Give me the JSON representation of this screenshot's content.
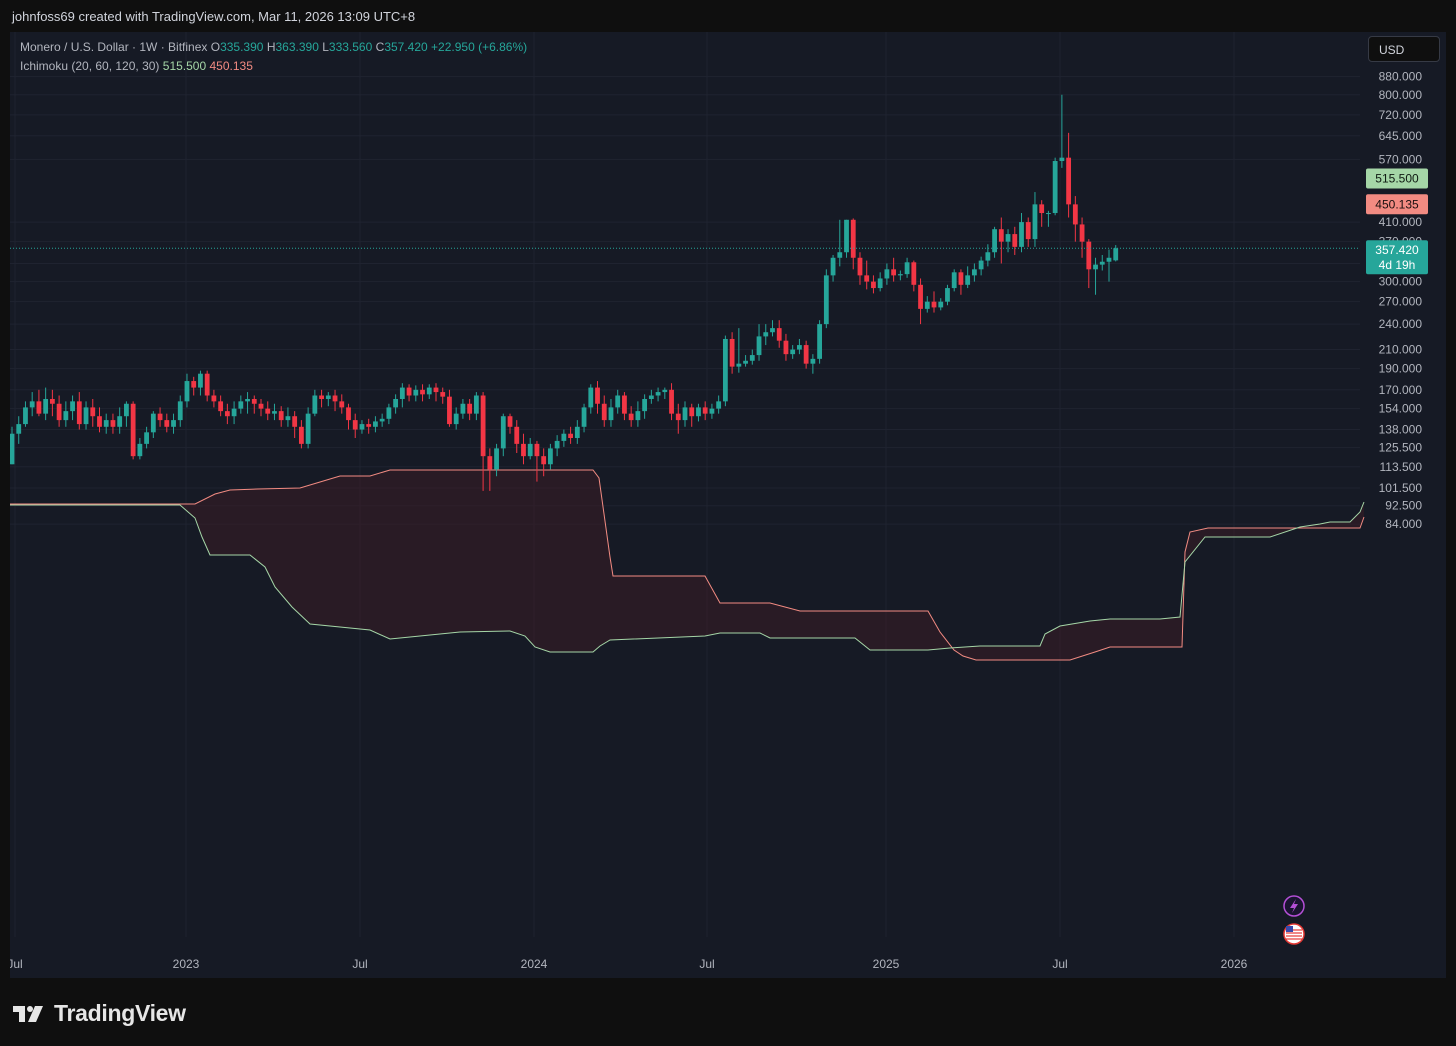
{
  "header": {
    "attribution": "johnfoss69 created with TradingView.com, Mar 11, 2026 13:09 UTC+8"
  },
  "legend": {
    "symbol": "Monero / U.S. Dollar · 1W · Bitfinex",
    "o_label": "O",
    "o_value": "335.390",
    "h_label": "H",
    "h_value": "363.390",
    "l_label": "L",
    "l_value": "333.560",
    "c_label": "C",
    "c_value": "357.420",
    "change": "+22.950 (+6.86%)",
    "indicator": "Ichimoku (20, 60, 120, 30)",
    "ind_value1": "515.500",
    "ind_value2": "450.135"
  },
  "currency_button": "USD",
  "footer": {
    "brand": "TradingView"
  },
  "colors": {
    "up": "#26a69a",
    "down": "#f23645",
    "tenkan": "#a5d6a7",
    "kijun": "#f28b82",
    "background": "#161a25",
    "grid": "#1f2330"
  },
  "icons": [
    "lightning-icon",
    "us-flag-icon"
  ],
  "chart_data": {
    "type": "candlestick",
    "title": "Monero / U.S. Dollar · 1W · Bitfinex",
    "y_scale": "log",
    "y_ticks": [
      "880.000",
      "800.000",
      "720.000",
      "645.000",
      "570.000",
      "410.000",
      "370.000",
      "330.000",
      "300.000",
      "270.000",
      "240.000",
      "210.000",
      "190.000",
      "170.000",
      "154.000",
      "138.000",
      "125.500",
      "113.500",
      "101.500",
      "92.500",
      "84.000"
    ],
    "x_ticks": [
      "Jul",
      "2023",
      "Jul",
      "2024",
      "Jul",
      "2025",
      "Jul",
      "2026"
    ],
    "price_tags": [
      {
        "value": "515.500",
        "kind": "tenkan"
      },
      {
        "value": "450.135",
        "kind": "kijun"
      },
      {
        "value": "357.420",
        "countdown": "4d 19h",
        "kind": "last"
      }
    ],
    "last_price": 357.42,
    "candles": [
      [
        115,
        135,
        115,
        140
      ],
      [
        135,
        142,
        128,
        148
      ],
      [
        142,
        155,
        140,
        160
      ],
      [
        155,
        160,
        148,
        168
      ],
      [
        160,
        150,
        148,
        170
      ],
      [
        150,
        162,
        145,
        172
      ],
      [
        162,
        158,
        148,
        170
      ],
      [
        158,
        145,
        140,
        165
      ],
      [
        145,
        152,
        140,
        160
      ],
      [
        152,
        160,
        145,
        165
      ],
      [
        160,
        142,
        138,
        168
      ],
      [
        142,
        155,
        138,
        160
      ],
      [
        155,
        148,
        140,
        162
      ],
      [
        148,
        140,
        136,
        155
      ],
      [
        140,
        145,
        135,
        150
      ],
      [
        145,
        140,
        135,
        150
      ],
      [
        140,
        148,
        135,
        155
      ],
      [
        148,
        158,
        140,
        160
      ],
      [
        158,
        120,
        118,
        160
      ],
      [
        120,
        128,
        118,
        132
      ],
      [
        128,
        136,
        125,
        140
      ],
      [
        136,
        150,
        132,
        152
      ],
      [
        150,
        145,
        140,
        155
      ],
      [
        145,
        140,
        136,
        150
      ],
      [
        140,
        145,
        135,
        150
      ],
      [
        145,
        160,
        140,
        165
      ],
      [
        160,
        178,
        155,
        185
      ],
      [
        178,
        172,
        165,
        182
      ],
      [
        172,
        185,
        165,
        188
      ],
      [
        185,
        165,
        160,
        188
      ],
      [
        165,
        160,
        155,
        170
      ],
      [
        160,
        152,
        148,
        165
      ],
      [
        152,
        148,
        142,
        158
      ],
      [
        148,
        154,
        142,
        160
      ],
      [
        154,
        160,
        150,
        165
      ],
      [
        160,
        162,
        150,
        168
      ],
      [
        162,
        158,
        150,
        165
      ],
      [
        158,
        154,
        148,
        162
      ],
      [
        154,
        150,
        145,
        160
      ],
      [
        150,
        152,
        145,
        158
      ],
      [
        152,
        145,
        140,
        156
      ],
      [
        145,
        148,
        140,
        155
      ],
      [
        148,
        140,
        132,
        152
      ],
      [
        140,
        128,
        125,
        145
      ],
      [
        128,
        150,
        125,
        155
      ],
      [
        150,
        165,
        148,
        170
      ],
      [
        165,
        162,
        155,
        170
      ],
      [
        162,
        165,
        156,
        168
      ],
      [
        165,
        160,
        152,
        170
      ],
      [
        160,
        155,
        150,
        166
      ],
      [
        155,
        145,
        138,
        158
      ],
      [
        145,
        138,
        132,
        150
      ],
      [
        138,
        142,
        135,
        145
      ],
      [
        142,
        140,
        135,
        146
      ],
      [
        140,
        144,
        136,
        148
      ],
      [
        144,
        146,
        140,
        150
      ],
      [
        146,
        155,
        142,
        158
      ],
      [
        155,
        162,
        150,
        166
      ],
      [
        162,
        172,
        155,
        176
      ],
      [
        172,
        165,
        160,
        175
      ],
      [
        165,
        170,
        160,
        174
      ],
      [
        170,
        166,
        160,
        175
      ],
      [
        166,
        172,
        162,
        175
      ],
      [
        172,
        168,
        160,
        176
      ],
      [
        168,
        164,
        158,
        172
      ],
      [
        164,
        142,
        140,
        170
      ],
      [
        142,
        150,
        138,
        155
      ],
      [
        150,
        158,
        146,
        162
      ],
      [
        158,
        150,
        145,
        162
      ],
      [
        150,
        165,
        145,
        168
      ],
      [
        165,
        120,
        100,
        168
      ],
      [
        120,
        112,
        100,
        125
      ],
      [
        112,
        125,
        108,
        128
      ],
      [
        125,
        148,
        120,
        150
      ],
      [
        148,
        140,
        135,
        150
      ],
      [
        140,
        128,
        122,
        145
      ],
      [
        128,
        120,
        115,
        135
      ],
      [
        120,
        128,
        118,
        132
      ],
      [
        128,
        120,
        105,
        130
      ],
      [
        120,
        115,
        108,
        125
      ],
      [
        115,
        125,
        112,
        128
      ],
      [
        125,
        130,
        120,
        134
      ],
      [
        130,
        135,
        126,
        138
      ],
      [
        135,
        132,
        128,
        140
      ],
      [
        132,
        140,
        128,
        145
      ],
      [
        140,
        155,
        136,
        158
      ],
      [
        155,
        172,
        150,
        175
      ],
      [
        172,
        158,
        150,
        178
      ],
      [
        158,
        145,
        140,
        165
      ],
      [
        145,
        155,
        140,
        162
      ],
      [
        155,
        165,
        150,
        170
      ],
      [
        165,
        150,
        145,
        168
      ],
      [
        150,
        145,
        140,
        156
      ],
      [
        145,
        152,
        140,
        160
      ],
      [
        152,
        162,
        146,
        166
      ],
      [
        162,
        165,
        158,
        170
      ],
      [
        165,
        168,
        160,
        172
      ],
      [
        168,
        170,
        162,
        172
      ],
      [
        170,
        150,
        145,
        176
      ],
      [
        150,
        145,
        135,
        158
      ],
      [
        145,
        155,
        140,
        160
      ],
      [
        155,
        148,
        140,
        158
      ],
      [
        148,
        155,
        144,
        158
      ],
      [
        155,
        150,
        145,
        160
      ],
      [
        150,
        154,
        146,
        158
      ],
      [
        154,
        160,
        150,
        165
      ],
      [
        160,
        222,
        156,
        226
      ],
      [
        222,
        192,
        185,
        230
      ],
      [
        192,
        195,
        186,
        235
      ],
      [
        195,
        198,
        192,
        204
      ],
      [
        198,
        204,
        194,
        210
      ],
      [
        204,
        225,
        198,
        240
      ],
      [
        225,
        230,
        215,
        240
      ],
      [
        230,
        235,
        225,
        245
      ],
      [
        235,
        220,
        212,
        245
      ],
      [
        220,
        205,
        198,
        228
      ],
      [
        205,
        210,
        200,
        215
      ],
      [
        210,
        215,
        205,
        222
      ],
      [
        215,
        195,
        190,
        220
      ],
      [
        195,
        200,
        185,
        205
      ],
      [
        200,
        240,
        195,
        245
      ],
      [
        240,
        310,
        235,
        320
      ],
      [
        310,
        340,
        300,
        345
      ],
      [
        340,
        350,
        325,
        415
      ],
      [
        350,
        415,
        340,
        415
      ],
      [
        415,
        340,
        320,
        418
      ],
      [
        340,
        310,
        295,
        350
      ],
      [
        310,
        300,
        288,
        335
      ],
      [
        300,
        290,
        282,
        310
      ],
      [
        290,
        305,
        285,
        315
      ],
      [
        305,
        320,
        295,
        330
      ],
      [
        320,
        310,
        300,
        340
      ],
      [
        310,
        312,
        302,
        318
      ],
      [
        312,
        332,
        306,
        340
      ],
      [
        332,
        295,
        285,
        335
      ],
      [
        295,
        260,
        240,
        305
      ],
      [
        260,
        270,
        255,
        278
      ],
      [
        270,
        262,
        255,
        285
      ],
      [
        262,
        270,
        258,
        275
      ],
      [
        270,
        290,
        265,
        295
      ],
      [
        290,
        315,
        285,
        320
      ],
      [
        315,
        295,
        280,
        320
      ],
      [
        295,
        310,
        290,
        325
      ],
      [
        310,
        320,
        300,
        330
      ],
      [
        320,
        335,
        310,
        342
      ],
      [
        335,
        350,
        325,
        365
      ],
      [
        350,
        395,
        340,
        400
      ],
      [
        395,
        370,
        330,
        420
      ],
      [
        370,
        385,
        350,
        395
      ],
      [
        385,
        360,
        345,
        400
      ],
      [
        360,
        410,
        350,
        430
      ],
      [
        410,
        375,
        360,
        420
      ],
      [
        375,
        450,
        360,
        480
      ],
      [
        450,
        430,
        400,
        460
      ],
      [
        430,
        430,
        400,
        435
      ],
      [
        430,
        565,
        425,
        575
      ],
      [
        565,
        575,
        545,
        800
      ],
      [
        575,
        450,
        420,
        655
      ],
      [
        450,
        405,
        370,
        470
      ],
      [
        405,
        370,
        340,
        420
      ],
      [
        370,
        320,
        290,
        375
      ],
      [
        320,
        328,
        280,
        340
      ],
      [
        328,
        333,
        318,
        345
      ],
      [
        333,
        340,
        300,
        355
      ],
      [
        335.39,
        357.42,
        333.56,
        363.39
      ]
    ]
  }
}
